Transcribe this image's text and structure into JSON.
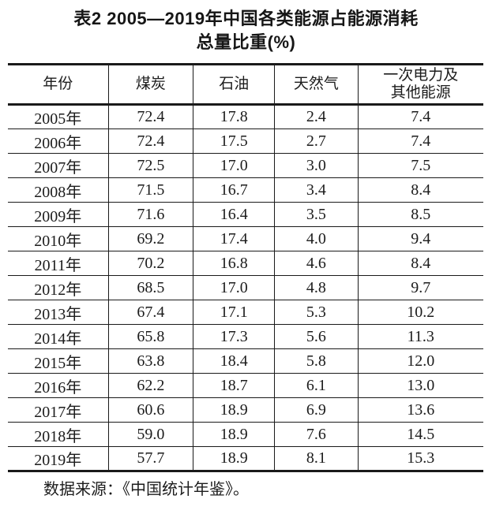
{
  "page": {
    "background": "#ffffff",
    "text_color": "#1c1c1c",
    "border_color": "#1a1a1a"
  },
  "title": {
    "line1": "表2 2005—2019年中国各类能源占能源消耗",
    "line2": "总量比重(%)"
  },
  "table": {
    "columns": [
      "年份",
      "煤炭",
      "石油",
      "天然气",
      "一次电力及\n其他能源"
    ],
    "rows": [
      [
        "2005年",
        "72.4",
        "17.8",
        "2.4",
        "7.4"
      ],
      [
        "2006年",
        "72.4",
        "17.5",
        "2.7",
        "7.4"
      ],
      [
        "2007年",
        "72.5",
        "17.0",
        "3.0",
        "7.5"
      ],
      [
        "2008年",
        "71.5",
        "16.7",
        "3.4",
        "8.4"
      ],
      [
        "2009年",
        "71.6",
        "16.4",
        "3.5",
        "8.5"
      ],
      [
        "2010年",
        "69.2",
        "17.4",
        "4.0",
        "9.4"
      ],
      [
        "2011年",
        "70.2",
        "16.8",
        "4.6",
        "8.4"
      ],
      [
        "2012年",
        "68.5",
        "17.0",
        "4.8",
        "9.7"
      ],
      [
        "2013年",
        "67.4",
        "17.1",
        "5.3",
        "10.2"
      ],
      [
        "2014年",
        "65.8",
        "17.3",
        "5.6",
        "11.3"
      ],
      [
        "2015年",
        "63.8",
        "18.4",
        "5.8",
        "12.0"
      ],
      [
        "2016年",
        "62.2",
        "18.7",
        "6.1",
        "13.0"
      ],
      [
        "2017年",
        "60.6",
        "18.9",
        "6.9",
        "13.6"
      ],
      [
        "2018年",
        "59.0",
        "18.9",
        "7.6",
        "14.5"
      ],
      [
        "2019年",
        "57.7",
        "18.9",
        "8.1",
        "15.3"
      ]
    ]
  },
  "source_note": "数据来源：《中国统计年鉴》。",
  "chart_data": {
    "type": "table",
    "title": "表2 2005—2019年中国各类能源占能源消耗总量比重(%)",
    "columns": [
      "年份",
      "煤炭",
      "石油",
      "天然气",
      "一次电力及其他能源"
    ],
    "categories": [
      "2005年",
      "2006年",
      "2007年",
      "2008年",
      "2009年",
      "2010年",
      "2011年",
      "2012年",
      "2013年",
      "2014年",
      "2015年",
      "2016年",
      "2017年",
      "2018年",
      "2019年"
    ],
    "series": [
      {
        "name": "煤炭",
        "values": [
          72.4,
          72.4,
          72.5,
          71.5,
          71.6,
          69.2,
          70.2,
          68.5,
          67.4,
          65.8,
          63.8,
          62.2,
          60.6,
          59.0,
          57.7
        ]
      },
      {
        "name": "石油",
        "values": [
          17.8,
          17.5,
          17.0,
          16.7,
          16.4,
          17.4,
          16.8,
          17.0,
          17.1,
          17.3,
          18.4,
          18.7,
          18.9,
          18.9,
          18.9
        ]
      },
      {
        "name": "天然气",
        "values": [
          2.4,
          2.7,
          3.0,
          3.4,
          3.5,
          4.0,
          4.6,
          4.8,
          5.3,
          5.6,
          5.8,
          6.1,
          6.9,
          7.6,
          8.1
        ]
      },
      {
        "name": "一次电力及其他能源",
        "values": [
          7.4,
          7.4,
          7.5,
          8.4,
          8.5,
          9.4,
          8.4,
          9.7,
          10.2,
          11.3,
          12.0,
          13.0,
          13.6,
          14.5,
          15.3
        ]
      }
    ],
    "unit": "%",
    "source": "数据来源：《中国统计年鉴》。"
  }
}
